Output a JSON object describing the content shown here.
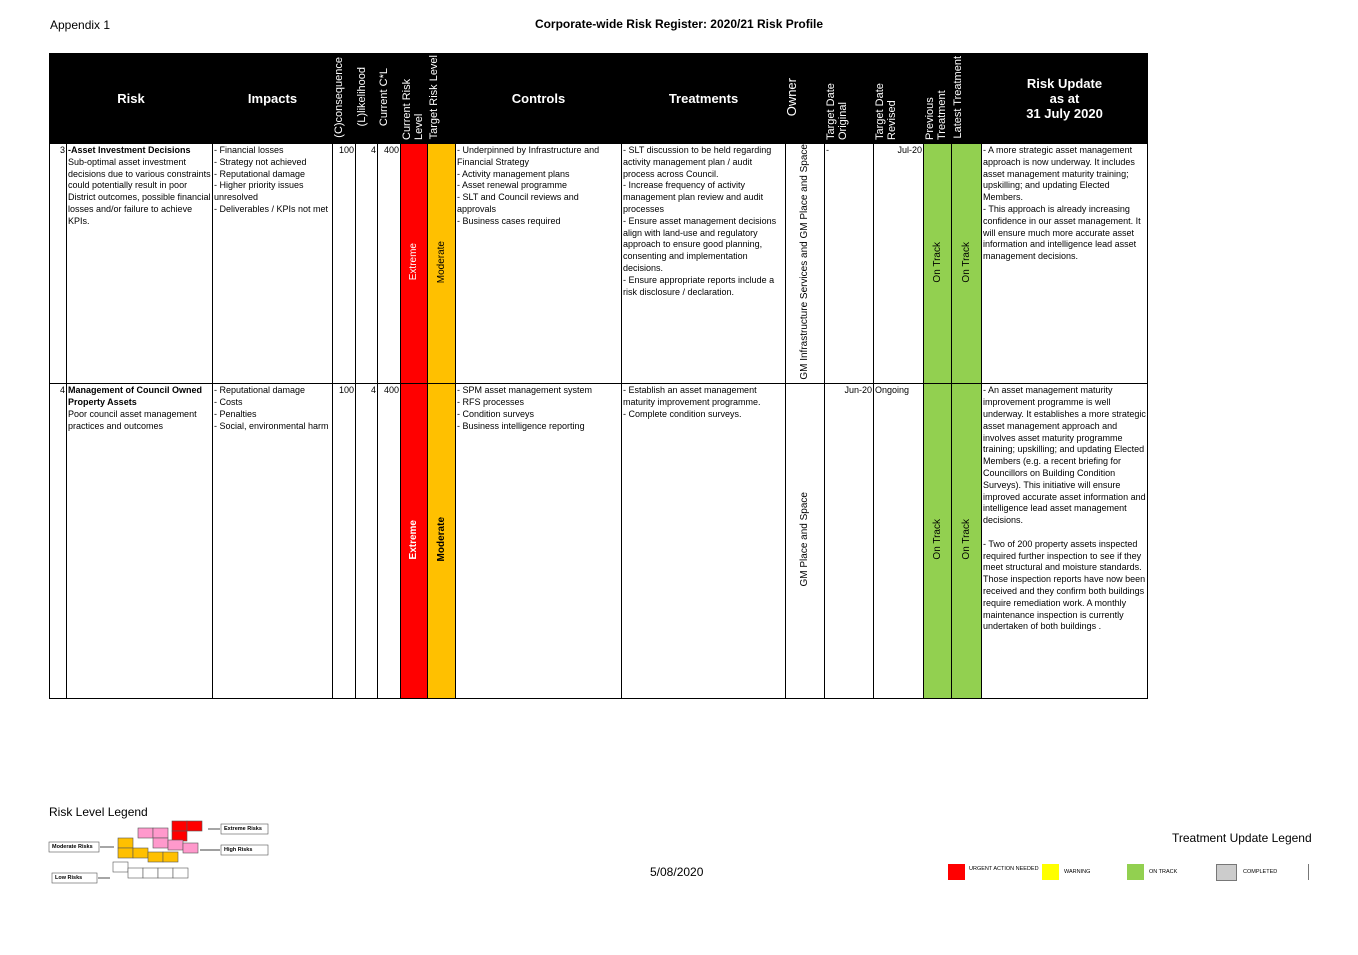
{
  "header": {
    "appendix": "Appendix 1",
    "title": "Corporate-wide Risk Register: 2020/21 Risk Profile"
  },
  "table": {
    "columns": [
      "Risk",
      "Impacts",
      "(C)consequence",
      "(L)likelihood",
      "Current C*L",
      "Current Risk Level",
      "Target Risk Level",
      "Controls",
      "Treatments",
      "Owner",
      "Target Date Original",
      "Target Date Revised",
      "Previous Treatment",
      "Latest Treatment",
      "Risk Update\nas at\n31 July 2020"
    ],
    "rows": [
      {
        "number": "3",
        "risk_title": "-Asset Investment Decisions",
        "risk_text": "Sub-optimal asset investment decisions due to various constraints could potentially result in poor District outcomes, possible financial losses and/or failure to achieve KPIs.",
        "impacts": [
          "- Financial losses",
          "- Strategy not achieved",
          "- Reputational damage",
          "- Higher priority issues unresolved",
          "- Deliverables / KPIs not met"
        ],
        "consequence": "100",
        "likelihood": "4",
        "current_cl": "400",
        "current_level": "Extreme",
        "target_level": "Moderate",
        "controls": [
          "- Underpinned by Infrastructure and Financial Strategy",
          "- Activity management plans",
          "- Asset renewal programme",
          "- SLT and Council reviews and approvals",
          "- Business cases required"
        ],
        "treatments": [
          "- SLT discussion to be held regarding activity management plan / audit process across Council.",
          "- Increase frequency of activity management plan review and audit processes",
          "- Ensure asset management decisions align with land-use and regulatory approach to ensure good planning, consenting and implementation decisions.",
          "- Ensure appropriate reports include a risk disclosure / declaration."
        ],
        "owner": "GM Infrastructure Services and GM Place and Space",
        "date_original": "-",
        "date_revised": "Jul-20",
        "previous_treatment": "On Track",
        "latest_treatment": "On Track",
        "update": [
          "- A more strategic asset management approach is now underway. It includes asset management maturity training; upskilling; and updating Elected Members.",
          "- This approach is already increasing confidence in our asset management. It will ensure much more accurate asset information and intelligence lead asset management decisions."
        ]
      },
      {
        "number": "4",
        "risk_title": "Management of Council Owned Property Assets",
        "risk_text": "Poor council asset management practices and outcomes",
        "impacts": [
          "- Reputational damage",
          "- Costs",
          "- Penalties",
          "- Social, environmental harm"
        ],
        "consequence": "100",
        "likelihood": "4",
        "current_cl": "400",
        "current_level": "Extreme",
        "target_level": "Moderate",
        "controls": [
          "- SPM asset management system",
          "- RFS processes",
          "- Condition surveys",
          "- Business intelligence reporting"
        ],
        "treatments": [
          "- Establish an asset management maturity improvement programme.",
          "- Complete condition surveys."
        ],
        "owner": "GM Place and Space",
        "date_original": "Jun-20",
        "date_revised": "Ongoing",
        "previous_treatment": "On Track",
        "latest_treatment": "On Track",
        "update": [
          "- An asset management maturity improvement programme is well underway. It establishes a more strategic asset management approach and involves asset maturity programme training; upskilling; and updating Elected Members (e.g. a recent briefing for Councillors on Building Condition Surveys). This initiative will ensure improved accurate asset information and intelligence lead asset management decisions.",
          "- Two of 200 property assets inspected required further inspection to see if they meet structural and moisture standards.  Those inspection reports have now been received and they confirm both buildings require remediation work.  A monthly maintenance inspection is currently undertaken of both buildings ."
        ]
      }
    ]
  },
  "footer": {
    "risk_legend_title": "Risk Level Legend",
    "risk_legend": [
      "Extreme Risks",
      "High Risks",
      "Moderate Risks",
      "Low Risks"
    ],
    "date": "5/08/2020",
    "treatment_legend_title": "Treatment Update Legend",
    "treatment_legend": [
      "URGENT ACTION NEEDED",
      "WARNING",
      "ON TRACK",
      "COMPLETED"
    ]
  }
}
